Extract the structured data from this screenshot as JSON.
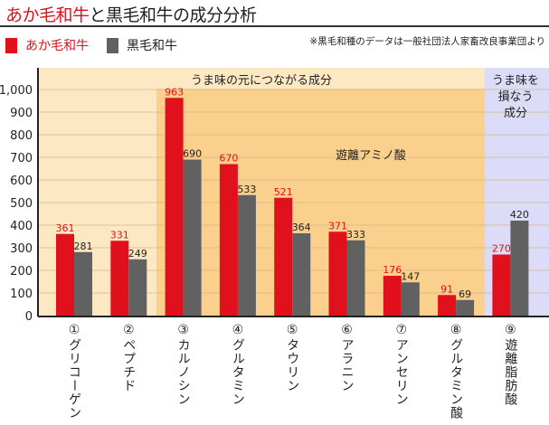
{
  "title": {
    "part_red": "あか毛和牛",
    "part_black": "と黒毛和牛の成分分析"
  },
  "note": "※黒毛和種のデータは一般社団法人家畜改良事業団より",
  "chart_data": {
    "type": "bar",
    "categories": [
      "①グリコーゲン",
      "②ペプチド",
      "③カルノシン",
      "④グルタミン",
      "⑤タウリン",
      "⑥アラニン",
      "⑦アンセリン",
      "⑧グルタミン酸",
      "⑨遊離脂肪酸"
    ],
    "series": [
      {
        "name": "あか毛和牛",
        "color": "#e0101c",
        "values": [
          361,
          331,
          963,
          670,
          521,
          371,
          176,
          91,
          270
        ]
      },
      {
        "name": "黒毛和牛",
        "color": "#616161",
        "values": [
          281,
          249,
          690,
          533,
          364,
          333,
          147,
          69,
          420
        ]
      }
    ],
    "ylim": [
      0,
      1000
    ],
    "yticks": [
      "0",
      "100",
      "200",
      "300",
      "400",
      "500",
      "600",
      "700",
      "800",
      "900",
      "1,000"
    ],
    "grid": true,
    "legend": "top-left",
    "regions": [
      {
        "label": "うま味の元につながる成分",
        "categories": [
          1,
          8
        ],
        "color": "#fde8c4"
      },
      {
        "label": "遊離アミノ酸",
        "categories": [
          3,
          8
        ],
        "color": "#fbcf8c"
      },
      {
        "label": "うま味を損なう成分",
        "categories": [
          9,
          9
        ],
        "color": "#dcdcf8"
      }
    ]
  }
}
